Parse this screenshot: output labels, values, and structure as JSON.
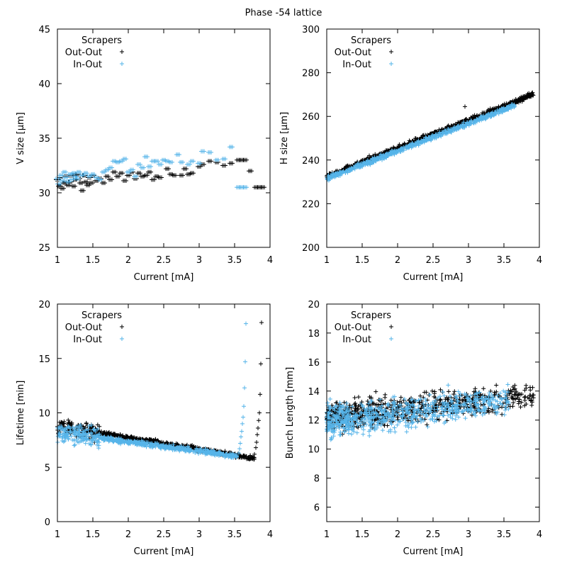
{
  "figure_title": "Phase -54 lattice",
  "colors": {
    "out_out": "#000000",
    "in_out": "#56b4e9"
  },
  "chart_data": [
    {
      "type": "scatter",
      "title": "",
      "xlabel": "Current [mA]",
      "ylabel": "V size [µm]",
      "xlim": [
        1,
        4
      ],
      "ylim": [
        25,
        45
      ],
      "xticks": [
        "1",
        "1.5",
        "2",
        "2.5",
        "3",
        "3.5",
        "4"
      ],
      "yticks": [
        "25",
        "30",
        "35",
        "40",
        "45"
      ],
      "legend": {
        "title": "Scrapers",
        "position": "top-left",
        "entries": [
          "Out-Out",
          "In-Out"
        ]
      },
      "series": [
        {
          "name": "Out-Out",
          "points": [
            [
              1.0,
              31.2
            ],
            [
              1.03,
              30.6
            ],
            [
              1.05,
              31.4
            ],
            [
              1.07,
              30.4
            ],
            [
              1.1,
              30.9
            ],
            [
              1.12,
              31.5
            ],
            [
              1.15,
              30.7
            ],
            [
              1.18,
              31.0
            ],
            [
              1.2,
              31.6
            ],
            [
              1.23,
              30.6
            ],
            [
              1.25,
              31.2
            ],
            [
              1.28,
              31.7
            ],
            [
              1.3,
              31.3
            ],
            [
              1.33,
              30.9
            ],
            [
              1.35,
              30.2
            ],
            [
              1.38,
              31.6
            ],
            [
              1.4,
              31.0
            ],
            [
              1.43,
              30.7
            ],
            [
              1.45,
              31.4
            ],
            [
              1.48,
              30.9
            ],
            [
              1.5,
              31.6
            ],
            [
              1.55,
              31.1
            ],
            [
              1.6,
              31.3
            ],
            [
              1.65,
              30.9
            ],
            [
              1.7,
              31.5
            ],
            [
              1.75,
              31.2
            ],
            [
              1.8,
              31.9
            ],
            [
              1.85,
              31.5
            ],
            [
              1.9,
              31.8
            ],
            [
              1.95,
              31.1
            ],
            [
              2.0,
              31.6
            ],
            [
              2.05,
              31.9
            ],
            [
              2.1,
              31.3
            ],
            [
              2.15,
              31.8
            ],
            [
              2.2,
              31.5
            ],
            [
              2.25,
              31.6
            ],
            [
              2.3,
              31.9
            ],
            [
              2.35,
              31.2
            ],
            [
              2.4,
              31.5
            ],
            [
              2.45,
              31.4
            ],
            [
              2.55,
              32.2
            ],
            [
              2.6,
              31.7
            ],
            [
              2.65,
              31.6
            ],
            [
              2.75,
              31.6
            ],
            [
              2.8,
              32.2
            ],
            [
              2.85,
              31.7
            ],
            [
              2.9,
              31.8
            ],
            [
              3.0,
              32.4
            ],
            [
              3.05,
              32.6
            ],
            [
              3.15,
              32.9
            ],
            [
              3.25,
              32.8
            ],
            [
              3.35,
              32.5
            ],
            [
              3.45,
              32.7
            ],
            [
              3.55,
              33.0
            ],
            [
              3.6,
              33.0
            ],
            [
              3.65,
              33.0
            ],
            [
              3.72,
              32.0
            ],
            [
              3.8,
              30.5
            ],
            [
              3.85,
              30.5
            ],
            [
              3.9,
              30.5
            ]
          ]
        },
        {
          "name": "In-Out",
          "points": [
            [
              1.0,
              31.3
            ],
            [
              1.02,
              30.8
            ],
            [
              1.05,
              31.6
            ],
            [
              1.07,
              31.1
            ],
            [
              1.1,
              31.9
            ],
            [
              1.12,
              31.4
            ],
            [
              1.15,
              31.0
            ],
            [
              1.18,
              31.7
            ],
            [
              1.2,
              31.2
            ],
            [
              1.23,
              31.8
            ],
            [
              1.25,
              31.5
            ],
            [
              1.28,
              31.3
            ],
            [
              1.3,
              31.9
            ],
            [
              1.35,
              31.6
            ],
            [
              1.4,
              31.8
            ],
            [
              1.45,
              31.5
            ],
            [
              1.5,
              31.7
            ],
            [
              1.55,
              31.4
            ],
            [
              1.6,
              31.2
            ],
            [
              1.65,
              31.9
            ],
            [
              1.7,
              32.1
            ],
            [
              1.75,
              32.3
            ],
            [
              1.8,
              32.9
            ],
            [
              1.85,
              32.8
            ],
            [
              1.9,
              32.9
            ],
            [
              1.95,
              33.1
            ],
            [
              2.0,
              31.9
            ],
            [
              2.05,
              32.1
            ],
            [
              2.1,
              31.5
            ],
            [
              2.15,
              32.6
            ],
            [
              2.2,
              32.3
            ],
            [
              2.25,
              33.3
            ],
            [
              2.3,
              32.4
            ],
            [
              2.35,
              32.9
            ],
            [
              2.4,
              32.9
            ],
            [
              2.45,
              32.6
            ],
            [
              2.5,
              33.0
            ],
            [
              2.55,
              32.9
            ],
            [
              2.6,
              32.8
            ],
            [
              2.7,
              33.5
            ],
            [
              2.75,
              32.8
            ],
            [
              2.85,
              32.6
            ],
            [
              2.9,
              32.9
            ],
            [
              3.0,
              32.7
            ],
            [
              3.05,
              33.8
            ],
            [
              3.15,
              33.7
            ],
            [
              3.25,
              33.0
            ],
            [
              3.35,
              33.1
            ],
            [
              3.45,
              34.2
            ],
            [
              3.55,
              30.5
            ],
            [
              3.6,
              30.5
            ],
            [
              3.65,
              30.5
            ]
          ]
        }
      ]
    },
    {
      "type": "scatter",
      "title": "",
      "xlabel": "Current [mA]",
      "ylabel": "H size [µm]",
      "xlim": [
        1,
        4
      ],
      "ylim": [
        200,
        300
      ],
      "xticks": [
        "1",
        "1.5",
        "2",
        "2.5",
        "3",
        "3.5",
        "4"
      ],
      "yticks": [
        "200",
        "220",
        "240",
        "260",
        "280",
        "300"
      ],
      "legend": {
        "title": "Scrapers",
        "position": "top-left",
        "entries": [
          "Out-Out",
          "In-Out"
        ]
      },
      "series": [
        {
          "name": "Out-Out",
          "trend": {
            "x0": 1.0,
            "y0": 232.5,
            "x1": 3.9,
            "y1": 270.0
          },
          "x_range": [
            1.0,
            3.92
          ],
          "spread": 1.0,
          "outliers": [
            [
              2.95,
              264.5
            ],
            [
              1.6,
              242.0
            ]
          ]
        },
        {
          "name": "In-Out",
          "trend": {
            "x0": 1.0,
            "y0": 231.5,
            "x1": 3.65,
            "y1": 265.0
          },
          "x_range": [
            1.0,
            3.65
          ],
          "spread": 1.0
        }
      ]
    },
    {
      "type": "scatter",
      "title": "",
      "xlabel": "Current [mA]",
      "ylabel": "Lifetime [min]",
      "xlim": [
        1,
        4
      ],
      "ylim": [
        0,
        20
      ],
      "xticks": [
        "1",
        "1.5",
        "2",
        "2.5",
        "3",
        "3.5",
        "4"
      ],
      "yticks": [
        "0",
        "5",
        "10",
        "15",
        "20"
      ],
      "legend": {
        "title": "Scrapers",
        "position": "top-left",
        "entries": [
          "Out-Out",
          "In-Out"
        ]
      },
      "series": [
        {
          "name": "Out-Out",
          "trend": {
            "x0": 1.0,
            "y0": 8.8,
            "x1": 3.7,
            "y1": 5.9
          },
          "x_range": [
            1.0,
            3.78
          ],
          "spread": 0.5,
          "tail": [
            [
              3.78,
              6.2
            ],
            [
              3.8,
              6.8
            ],
            [
              3.81,
              7.3
            ],
            [
              3.82,
              8.0
            ],
            [
              3.83,
              8.6
            ],
            [
              3.84,
              9.3
            ],
            [
              3.85,
              10.0
            ],
            [
              3.86,
              11.7
            ],
            [
              3.87,
              14.5
            ],
            [
              3.88,
              18.3
            ]
          ]
        },
        {
          "name": "In-Out",
          "trend": {
            "x0": 1.0,
            "y0": 8.2,
            "x1": 3.55,
            "y1": 6.0
          },
          "x_range": [
            1.0,
            3.55
          ],
          "spread": 0.6,
          "tail": [
            [
              3.56,
              6.3
            ],
            [
              3.57,
              6.7
            ],
            [
              3.58,
              7.2
            ],
            [
              3.59,
              7.8
            ],
            [
              3.6,
              8.3
            ],
            [
              3.61,
              9.0
            ],
            [
              3.62,
              9.6
            ],
            [
              3.63,
              10.6
            ],
            [
              3.64,
              12.3
            ],
            [
              3.65,
              14.7
            ],
            [
              3.66,
              18.2
            ]
          ]
        }
      ]
    },
    {
      "type": "scatter",
      "title": "",
      "xlabel": "Current [mA]",
      "ylabel": "Bunch Length [mm]",
      "xlim": [
        1,
        4
      ],
      "ylim": [
        5,
        20
      ],
      "xticks": [
        "1",
        "1.5",
        "2",
        "2.5",
        "3",
        "3.5",
        "4"
      ],
      "yticks": [
        "6",
        "8",
        "10",
        "12",
        "14",
        "16",
        "18",
        "20"
      ],
      "legend": {
        "title": "Scrapers",
        "position": "top-left",
        "entries": [
          "Out-Out",
          "In-Out"
        ]
      },
      "series": [
        {
          "name": "Out-Out",
          "trend": {
            "x0": 1.0,
            "y0": 12.2,
            "x1": 3.9,
            "y1": 13.7
          },
          "x_range": [
            1.0,
            3.92
          ],
          "spread": 0.9
        },
        {
          "name": "In-Out",
          "trend": {
            "x0": 1.0,
            "y0": 11.9,
            "x1": 3.6,
            "y1": 13.3
          },
          "x_range": [
            1.0,
            3.6
          ],
          "spread": 1.0
        }
      ]
    }
  ]
}
